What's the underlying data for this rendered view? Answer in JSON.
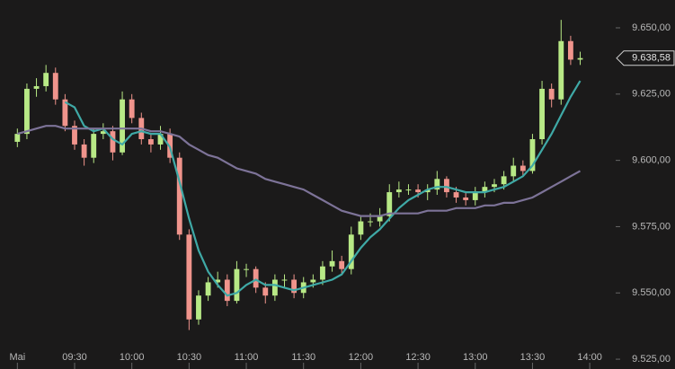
{
  "chart_data": {
    "type": "candlestick",
    "x": [
      540,
      545,
      550,
      555,
      560,
      565,
      570,
      575,
      580,
      585,
      590,
      595,
      600,
      605,
      610,
      615,
      620,
      625,
      630,
      635,
      640,
      645,
      650,
      655,
      660,
      665,
      670,
      675,
      680,
      685,
      690,
      695,
      700,
      705,
      710,
      715,
      720,
      725,
      730,
      735,
      740,
      745,
      750,
      755,
      760,
      765,
      770,
      775,
      780,
      785,
      790,
      795,
      800,
      805,
      810,
      815,
      820,
      825,
      830,
      835
    ],
    "open": [
      9607,
      9610,
      9627,
      9628,
      9633,
      9623,
      9613,
      9606,
      9601,
      9610,
      9611,
      9603,
      9623,
      9616,
      9608,
      9606,
      9610,
      9601,
      9572,
      9540,
      9549,
      9554,
      9555,
      9547,
      9559,
      9559,
      9552,
      9549,
      9555,
      9555,
      9550,
      9554,
      9555,
      9560,
      9562,
      9559,
      9572,
      9577,
      9577,
      9579,
      9588,
      9589,
      9589,
      9588,
      9589,
      9593,
      9588,
      9586,
      9585,
      9588,
      9590,
      9591,
      9594,
      9598,
      9596,
      9608,
      9627,
      9623,
      9645,
      9638
    ],
    "high": [
      9612,
      9629,
      9631,
      9636,
      9635,
      9625,
      9615,
      9608,
      9612,
      9614,
      9613,
      9626,
      9625,
      9618,
      9610,
      9613,
      9612,
      9603,
      9574,
      9551,
      9556,
      9558,
      9557,
      9562,
      9561,
      9560,
      9554,
      9557,
      9557,
      9557,
      9556,
      9557,
      9562,
      9566,
      9564,
      9575,
      9579,
      9580,
      9582,
      9591,
      9592,
      9591,
      9591,
      9591,
      9596,
      9594,
      9590,
      9588,
      9590,
      9592,
      9593,
      9596,
      9601,
      9600,
      9610,
      9630,
      9629,
      9653,
      9647,
      9641
    ],
    "low": [
      9605,
      9608,
      9624,
      9626,
      9621,
      9611,
      9604,
      9598,
      9599,
      9608,
      9600,
      9602,
      9614,
      9606,
      9603,
      9604,
      9599,
      9570,
      9536,
      9538,
      9547,
      9552,
      9545,
      9546,
      9556,
      9550,
      9546,
      9547,
      9552,
      9548,
      9548,
      9552,
      9553,
      9558,
      9557,
      9557,
      9570,
      9575,
      9575,
      9577,
      9586,
      9587,
      9586,
      9585,
      9587,
      9586,
      9584,
      9583,
      9583,
      9586,
      9588,
      9589,
      9592,
      9594,
      9595,
      9606,
      9620,
      9621,
      9636,
      9636
    ],
    "close": [
      9610,
      9627,
      9628,
      9633,
      9623,
      9613,
      9606,
      9601,
      9610,
      9611,
      9603,
      9623,
      9616,
      9608,
      9606,
      9610,
      9601,
      9572,
      9540,
      9549,
      9554,
      9555,
      9547,
      9559,
      9559,
      9552,
      9549,
      9555,
      9555,
      9550,
      9554,
      9555,
      9560,
      9562,
      9559,
      9572,
      9577,
      9577,
      9579,
      9588,
      9589,
      9589,
      9588,
      9589,
      9593,
      9588,
      9586,
      9585,
      9588,
      9590,
      9591,
      9594,
      9598,
      9596,
      9608,
      9627,
      9623,
      9645,
      9638,
      9638.58
    ],
    "up_color": "#b8e986",
    "down_color": "#f0948c",
    "series": [
      {
        "color": "#3fa9a6",
        "values": [
          null,
          null,
          null,
          null,
          null,
          9622,
          9620,
          9613,
          9611,
          9612,
          9608,
          9606,
          9610,
          9611,
          9610,
          9610,
          9605,
          9592,
          9578,
          9566,
          9558,
          9553,
          9549,
          9550,
          9553,
          9555,
          9553,
          9553,
          9552,
          9551,
          9552,
          9553,
          9554,
          9555,
          9557,
          9562,
          9567,
          9571,
          9574,
          9578,
          9582,
          9585,
          9587,
          9589,
          9590,
          9590,
          9589,
          9588,
          9588,
          9588,
          9589,
          9590,
          9592,
          9594,
          9598,
          9604,
          9610,
          9617,
          9624,
          9630
        ]
      },
      {
        "color": "#7d7398",
        "values": [
          9610,
          9611,
          9612,
          9613,
          9613,
          9612,
          9612,
          9612,
          9612,
          9612,
          9612,
          9612,
          9612,
          9612,
          9611,
          9611,
          9610,
          9609,
          9606,
          9604,
          9602,
          9601,
          9599,
          9597,
          9596,
          9595,
          9593,
          9592,
          9591,
          9590,
          9589,
          9587,
          9585,
          9583,
          9581,
          9580,
          9579,
          9579,
          9579,
          9580,
          9580,
          9580,
          9580,
          9581,
          9581,
          9581,
          9582,
          9582,
          9582,
          9583,
          9583,
          9584,
          9584,
          9585,
          9586,
          9588,
          9590,
          9592,
          9594,
          9596
        ]
      }
    ],
    "xlim": [
      530.9,
      853.6
    ],
    "xticks": [
      {
        "value": 540,
        "label": "Mai"
      },
      {
        "value": 570,
        "label": "09:30"
      },
      {
        "value": 600,
        "label": "10:00"
      },
      {
        "value": 630,
        "label": "10:30"
      },
      {
        "value": 660,
        "label": "11:00"
      },
      {
        "value": 690,
        "label": "11:30"
      },
      {
        "value": 720,
        "label": "12:00"
      },
      {
        "value": 750,
        "label": "12:30"
      },
      {
        "value": 780,
        "label": "13:00"
      },
      {
        "value": 810,
        "label": "13:30"
      },
      {
        "value": 840,
        "label": "14:00"
      }
    ],
    "ylim": [
      9521.3,
      9660.5
    ],
    "yticks": [
      {
        "value": 9525,
        "label": "9.525,00"
      },
      {
        "value": 9550,
        "label": "9.550,00"
      },
      {
        "value": 9575,
        "label": "9.575,00"
      },
      {
        "value": 9600,
        "label": "9.600,00"
      },
      {
        "value": 9625,
        "label": "9.625,00"
      },
      {
        "value": 9650,
        "label": "9.650,00"
      }
    ],
    "last_label": {
      "value": 9638.58,
      "label": "9.638,58"
    }
  }
}
